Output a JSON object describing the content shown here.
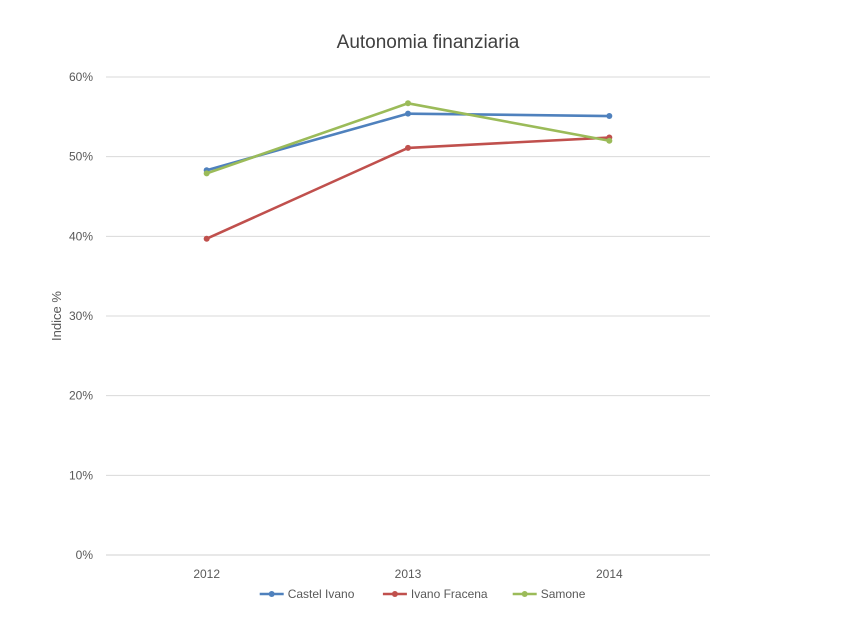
{
  "chart_data": {
    "type": "line",
    "title": "Autonomia finanziaria",
    "xlabel": "",
    "ylabel": "Indice %",
    "categories": [
      "2012",
      "2013",
      "2014"
    ],
    "ylim": [
      0,
      60
    ],
    "yticks": [
      0,
      10,
      20,
      30,
      40,
      50,
      60
    ],
    "ytick_labels": [
      "0%",
      "10%",
      "20%",
      "30%",
      "40%",
      "50%",
      "60%"
    ],
    "grid": true,
    "legend_position": "bottom",
    "series": [
      {
        "name": "Castel Ivano",
        "color": "#4F81BD",
        "values": [
          48.3,
          55.4,
          55.1
        ]
      },
      {
        "name": "Ivano Fracena",
        "color": "#C0504D",
        "values": [
          39.7,
          51.1,
          52.4
        ]
      },
      {
        "name": "Samone",
        "color": "#9BBB59",
        "values": [
          47.9,
          56.7,
          52.0
        ]
      }
    ]
  }
}
